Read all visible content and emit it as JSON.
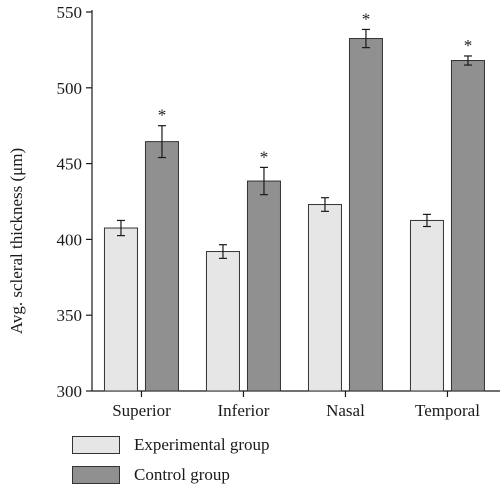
{
  "chart_data": {
    "type": "bar",
    "ylabel": "Avg. scleral thickness (μm)",
    "xlabel": "",
    "ylim": [
      300,
      550
    ],
    "yticks": [
      300,
      350,
      400,
      450,
      500,
      550
    ],
    "categories": [
      "Superior",
      "Inferior",
      "Nasal",
      "Temporal"
    ],
    "series": [
      {
        "name": "Experimental group",
        "color": "#e6e6e6",
        "values": [
          407.5,
          392,
          423,
          412.5
        ],
        "errors": [
          5,
          4.5,
          4.5,
          4
        ]
      },
      {
        "name": "Control group",
        "color": "#909090",
        "values": [
          464.5,
          438.5,
          532.5,
          518
        ],
        "errors": [
          10.5,
          9,
          6,
          3
        ],
        "markers": [
          "*",
          "*",
          "*",
          "*"
        ]
      }
    ],
    "grid": false,
    "legend": "bottom-left"
  }
}
